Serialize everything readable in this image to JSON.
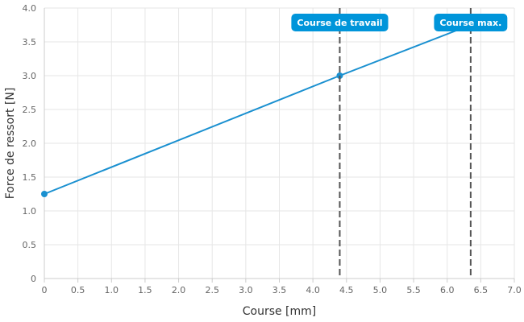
{
  "chart_data": {
    "type": "line",
    "title": "",
    "xlabel": "Course [mm]",
    "ylabel": "Force de ressort [N]",
    "xlim": [
      0,
      7
    ],
    "ylim": [
      0,
      4
    ],
    "x_ticks": [
      0,
      0.5,
      1,
      1.5,
      2,
      2.5,
      3,
      3.5,
      4,
      4.5,
      5,
      5.5,
      6,
      6.5,
      7
    ],
    "x_tick_labels": [
      "0",
      "0.5",
      "1.0",
      "1.5",
      "2.0",
      "2.5",
      "3.0",
      "3.5",
      "4.0",
      "4.5",
      "5.0",
      "5.5",
      "6.0",
      "6.5",
      "7.0"
    ],
    "y_ticks": [
      0,
      0.5,
      1,
      1.5,
      2,
      2.5,
      3,
      3.5,
      4
    ],
    "y_tick_labels": [
      "0",
      "0.5",
      "1.0",
      "1.5",
      "2.0",
      "2.5",
      "3.0",
      "3.5",
      "4.0"
    ],
    "grid": true,
    "series": [
      {
        "x": [
          0,
          4.4,
          6.35
        ],
        "y": [
          1.25,
          3.0,
          3.75
        ],
        "color": "#1a90d0",
        "markers": [
          {
            "x": 0,
            "y": 1.25
          },
          {
            "x": 4.4,
            "y": 3.0
          }
        ]
      }
    ],
    "vertical_markers": [
      {
        "x": 4.4,
        "label": "Course de travail",
        "color": "#0095da"
      },
      {
        "x": 6.35,
        "label": "Course max.",
        "color": "#0095da"
      }
    ]
  }
}
